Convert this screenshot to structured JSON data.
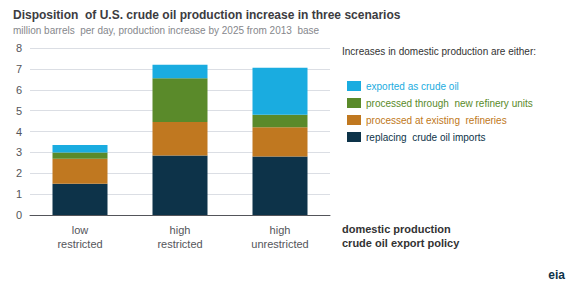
{
  "chart_data": {
    "type": "bar",
    "title": "Disposition  of U.S. crude oil production increase in three scenarios",
    "subtitle": "million barrels  per day, production increase by 2025 from 2013  base",
    "categories": [
      "low\nrestricted",
      "high\nrestricted",
      "high\nunrestricted"
    ],
    "stacked": true,
    "series": [
      {
        "name": "replacing  crude oil imports",
        "color": "#0d3349",
        "values": [
          1.5,
          2.85,
          2.8
        ]
      },
      {
        "name": "processed at existing  refineries",
        "color": "#c07820",
        "values": [
          1.2,
          1.6,
          1.4
        ]
      },
      {
        "name": "processed through  new refinery units",
        "color": "#5a8a2a",
        "values": [
          0.3,
          2.1,
          0.6
        ]
      },
      {
        "name": "exported as crude oil",
        "color": "#1aace0",
        "values": [
          0.35,
          0.65,
          2.25
        ]
      }
    ],
    "ylim": [
      0,
      8
    ],
    "yticks": [
      0,
      1,
      2,
      3,
      4,
      5,
      6,
      7,
      8
    ],
    "grid": true,
    "legend": "right",
    "legend_title": "Increases in domestic production are either:",
    "annotations": [
      "domestic production",
      "crude oil export policy",
      "eia"
    ]
  }
}
